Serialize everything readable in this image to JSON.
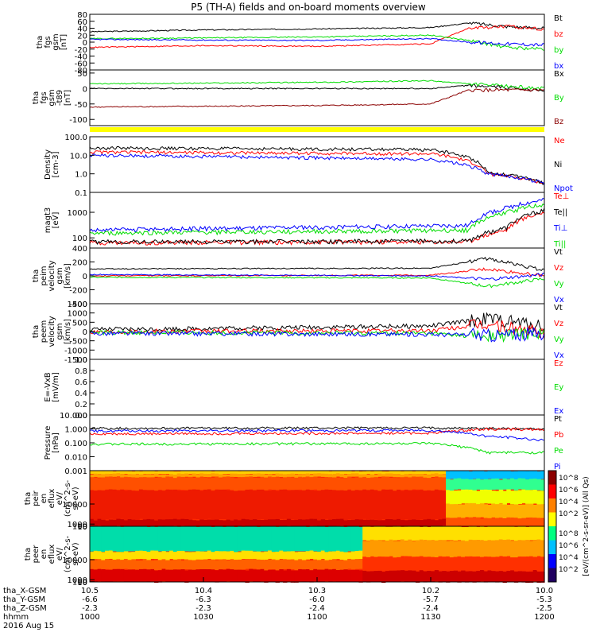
{
  "title": "P5 (TH-A) fields and on-board moments overview",
  "colors": {
    "black": "#000000",
    "red": "#ff0000",
    "green": "#00dd00",
    "blue": "#0000ff",
    "darkred": "#8b0000",
    "yellow": "#ffff00"
  },
  "chart_data": [
    {
      "type": "line",
      "id": "fgs",
      "ylabel_lines": [
        "tha",
        "fgs",
        "gsm",
        "[nT]"
      ],
      "yticks": [
        "80",
        "60",
        "40",
        "20",
        "0",
        "-20",
        "-40",
        "-60",
        "-80"
      ],
      "ylim": [
        -80,
        80
      ],
      "series": [
        {
          "name": "Bt",
          "color": "black",
          "x": [
            "1000",
            "1030",
            "1100",
            "1130",
            "1140",
            "1150",
            "1200"
          ],
          "values": [
            30,
            35,
            38,
            42,
            55,
            45,
            40
          ]
        },
        {
          "name": "bz",
          "color": "red",
          "x": [
            "1000",
            "1030",
            "1100",
            "1130",
            "1140",
            "1150",
            "1200"
          ],
          "values": [
            -15,
            -10,
            -12,
            -5,
            40,
            45,
            38
          ]
        },
        {
          "name": "by",
          "color": "green",
          "x": [
            "1000",
            "1030",
            "1100",
            "1130",
            "1140",
            "1150",
            "1200"
          ],
          "values": [
            10,
            12,
            15,
            20,
            5,
            -15,
            -20
          ]
        },
        {
          "name": "bx",
          "color": "blue",
          "x": [
            "1000",
            "1030",
            "1100",
            "1130",
            "1140",
            "1150",
            "1200"
          ],
          "values": [
            8,
            6,
            5,
            10,
            0,
            -5,
            -8
          ]
        }
      ]
    },
    {
      "type": "line",
      "id": "fgs_minus_t89",
      "ylabel_lines": [
        "tha",
        "fgs",
        "gsm",
        "-t89",
        "[nT]"
      ],
      "yticks": [
        "50",
        "0",
        "-50",
        "-100"
      ],
      "ylim": [
        -120,
        60
      ],
      "series": [
        {
          "name": "Bx",
          "color": "black",
          "x": [
            "1000",
            "1130",
            "1140",
            "1200"
          ],
          "values": [
            0,
            0,
            10,
            -5
          ]
        },
        {
          "name": "By",
          "color": "green",
          "x": [
            "1000",
            "1100",
            "1130",
            "1140",
            "1200"
          ],
          "values": [
            15,
            20,
            25,
            15,
            0
          ]
        },
        {
          "name": "Bz",
          "color": "darkred",
          "x": [
            "1000",
            "1100",
            "1130",
            "1140",
            "1200"
          ],
          "values": [
            -60,
            -55,
            -50,
            -5,
            -5
          ]
        }
      ]
    },
    {
      "type": "line",
      "id": "density",
      "log_scale": true,
      "ylabel_lines": [
        "Density",
        "[cm-3]"
      ],
      "yticks": [
        "100.0",
        "10.0",
        "1.0",
        "0.1"
      ],
      "ylim": [
        0.1,
        100
      ],
      "series": [
        {
          "name": "Ne",
          "color": "red",
          "x": [
            "1000",
            "1130",
            "1145",
            "1200"
          ],
          "values": [
            15,
            12,
            1.0,
            0.3
          ]
        },
        {
          "name": "Ni",
          "color": "black",
          "x": [
            "1000",
            "1130",
            "1145",
            "1200"
          ],
          "values": [
            25,
            20,
            1.2,
            0.3
          ]
        },
        {
          "name": "Npot",
          "color": "blue",
          "x": [
            "1000",
            "1130",
            "1145",
            "1200"
          ],
          "values": [
            10,
            6,
            1.0,
            0.3
          ]
        }
      ]
    },
    {
      "type": "line",
      "id": "temperature",
      "log_scale": true,
      "ylabel_lines": [
        "magt3",
        "[eV]"
      ],
      "yticks": [
        "1000",
        "100"
      ],
      "ylim": [
        40,
        6000
      ],
      "series": [
        {
          "name": "Te⊥",
          "color": "red",
          "x": [
            "1000",
            "1140",
            "1150",
            "1200"
          ],
          "values": [
            65,
            70,
            200,
            1000
          ]
        },
        {
          "name": "Te||",
          "color": "black",
          "x": [
            "1000",
            "1140",
            "1150",
            "1200"
          ],
          "values": [
            70,
            75,
            250,
            1200
          ]
        },
        {
          "name": "Ti⊥",
          "color": "blue",
          "x": [
            "1000",
            "1140",
            "1150",
            "1200"
          ],
          "values": [
            200,
            300,
            1500,
            3000
          ]
        },
        {
          "name": "Ti||",
          "color": "green",
          "x": [
            "1000",
            "1140",
            "1150",
            "1200"
          ],
          "values": [
            150,
            200,
            1000,
            2000
          ]
        }
      ]
    },
    {
      "type": "line",
      "id": "peim_velocity",
      "ylabel_lines": [
        "tha",
        "peim",
        "velocity",
        "gsm",
        "[km/s]"
      ],
      "yticks": [
        "400",
        "200",
        "0",
        "-200",
        "-400"
      ],
      "ylim": [
        -400,
        400
      ],
      "series": [
        {
          "name": "Vt",
          "color": "black",
          "x": [
            "1000",
            "1130",
            "1145",
            "1200"
          ],
          "values": [
            100,
            110,
            250,
            80
          ]
        },
        {
          "name": "Vz",
          "color": "red",
          "x": [
            "1000",
            "1130",
            "1145",
            "1200"
          ],
          "values": [
            0,
            10,
            100,
            0
          ]
        },
        {
          "name": "Vy",
          "color": "green",
          "x": [
            "1000",
            "1130",
            "1145",
            "1200"
          ],
          "values": [
            -20,
            -30,
            -150,
            -40
          ]
        },
        {
          "name": "Vx",
          "color": "blue",
          "x": [
            "1000",
            "1130",
            "1145",
            "1200"
          ],
          "values": [
            20,
            0,
            -50,
            20
          ]
        }
      ]
    },
    {
      "type": "line",
      "id": "peem_velocity",
      "ylabel_lines": [
        "tha",
        "peem",
        "velocity",
        "gsm",
        "[km/s]"
      ],
      "yticks": [
        "1500",
        "1000",
        "500",
        "0",
        "-500",
        "-1000",
        "-1500"
      ],
      "ylim": [
        -1500,
        1500
      ],
      "series": [
        {
          "name": "Vt",
          "color": "black",
          "x": [
            "1000",
            "1130",
            "1145",
            "1200"
          ],
          "values": [
            100,
            300,
            700,
            300
          ]
        },
        {
          "name": "Vz",
          "color": "red",
          "x": [
            "1000",
            "1130",
            "1145",
            "1200"
          ],
          "values": [
            0,
            50,
            400,
            -100
          ]
        },
        {
          "name": "Vy",
          "color": "green",
          "x": [
            "1000",
            "1130",
            "1145",
            "1200"
          ],
          "values": [
            -50,
            -100,
            -300,
            -50
          ]
        },
        {
          "name": "Vx",
          "color": "blue",
          "x": [
            "1000",
            "1130",
            "1145",
            "1200"
          ],
          "values": [
            -100,
            -150,
            -200,
            -100
          ]
        }
      ]
    },
    {
      "type": "line",
      "id": "efield",
      "ylabel_lines": [
        "E=-VxB",
        "[mV/m]"
      ],
      "yticks": [
        "1.0",
        "0.8",
        "0.6",
        "0.4",
        "0.2",
        "0.0"
      ],
      "ylim": [
        0,
        1
      ],
      "series": [
        {
          "name": "Ez",
          "color": "red",
          "x": [],
          "values": []
        },
        {
          "name": "Ey",
          "color": "green",
          "x": [],
          "values": []
        },
        {
          "name": "Ex",
          "color": "blue",
          "x": [],
          "values": []
        }
      ]
    },
    {
      "type": "line",
      "id": "pressure",
      "log_scale": true,
      "ylabel_lines": [
        "Pressure",
        "[nPa]"
      ],
      "yticks": [
        "10.000",
        "1.000",
        "0.100",
        "0.010",
        "0.001"
      ],
      "ylim": [
        0.001,
        10
      ],
      "series": [
        {
          "name": "Pt",
          "color": "black",
          "x": [
            "1000",
            "1130",
            "1200"
          ],
          "values": [
            1.1,
            1.2,
            1.0
          ]
        },
        {
          "name": "Pb",
          "color": "red",
          "x": [
            "1000",
            "1130",
            "1145",
            "1200"
          ],
          "values": [
            0.45,
            0.5,
            1.0,
            0.9
          ]
        },
        {
          "name": "Pe",
          "color": "green",
          "x": [
            "1000",
            "1130",
            "1145",
            "1200"
          ],
          "values": [
            0.08,
            0.09,
            0.02,
            0.02
          ]
        },
        {
          "name": "Pi",
          "color": "blue",
          "x": [
            "1000",
            "1130",
            "1145",
            "1200"
          ],
          "values": [
            0.7,
            0.8,
            0.3,
            0.15
          ]
        }
      ]
    },
    {
      "type": "heatmap",
      "id": "peir_en_eflux",
      "ylabel_lines": [
        "tha",
        "peir",
        "en",
        "eflux",
        "eV/",
        "(cm^2-s-",
        "sr-eV)"
      ],
      "yticks": [
        "10000",
        "1000",
        "100",
        "10"
      ],
      "ylim": [
        5,
        25000
      ]
    },
    {
      "type": "heatmap",
      "id": "peer_en_eflux",
      "ylabel_lines": [
        "tha",
        "peer",
        "en",
        "eflux",
        "eV/",
        "(cm^2-s-",
        "sr-eV)"
      ],
      "yticks": [
        "10000",
        "1000",
        "100",
        "10"
      ],
      "ylim": [
        5,
        25000
      ]
    }
  ],
  "colorbar": {
    "label": "[eV/(cm^2-s-sr-eV)] (All Qs)",
    "ticks": [
      "10^8",
      "10^6",
      "10^4",
      "10^2"
    ],
    "second_ticks": [
      "10^8",
      "10^6",
      "10^4",
      "10^2"
    ]
  },
  "x_axis": {
    "rows": [
      {
        "label": "tha_X-GSM",
        "values": [
          "10.5",
          "10.4",
          "10.3",
          "10.2",
          "10.0"
        ]
      },
      {
        "label": "tha_Y-GSM",
        "values": [
          "-6.6",
          "-6.3",
          "-6.0",
          "-5.7",
          "-5.3"
        ]
      },
      {
        "label": "tha_Z-GSM",
        "values": [
          "-2.3",
          "-2.3",
          "-2.4",
          "-2.4",
          "-2.5"
        ]
      },
      {
        "label": "hhmm",
        "values": [
          "1000",
          "1030",
          "1100",
          "1130",
          "1200"
        ]
      }
    ],
    "date": "2016 Aug 15"
  }
}
